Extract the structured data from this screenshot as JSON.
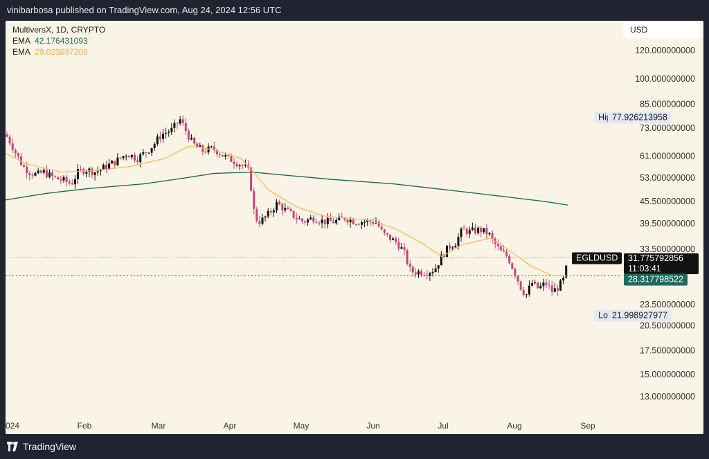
{
  "header": {
    "publisher_line": "vinibarbosa published on TradingView.com, Aug 24, 2024 12:56 UTC"
  },
  "legend": {
    "symbol_line": "MultiversX, 1D, CRYPTO",
    "ema1_label": "EMA",
    "ema1_value": "42.176431093",
    "ema2_label": "EMA",
    "ema2_value": "29.023037209"
  },
  "currency": "USD",
  "price_labels": {
    "high_label": "High",
    "high_value": "77.926213958",
    "low_label": "Low",
    "low_value": "21.998927977",
    "ticker": "EGLDUSD",
    "last_price": "31.775792856",
    "countdown": "11:03:41",
    "ema_price": "28.317798522"
  },
  "footer": {
    "brand": "TradingView"
  },
  "colors": {
    "up": "#111111",
    "down": "#c8447a",
    "ema_long": "#1e6b5b",
    "ema_short": "#f2bd5c",
    "background": "#faf4e6"
  },
  "chart_data": {
    "type": "candlestick",
    "title": "MultiversX, 1D, CRYPTO",
    "symbol": "EGLDUSD",
    "y_scale": "log",
    "y_ticks": [
      "120.000000000",
      "100.000000000",
      "85.000000000",
      "73.000000000",
      "61.000000000",
      "53.000000000",
      "45.500000000",
      "39.500000000",
      "33.500000000",
      "23.500000000",
      "20.500000000",
      "17.500000000",
      "15.000000000",
      "13.000000000"
    ],
    "x_ticks": [
      "024",
      "Feb",
      "Mar",
      "Apr",
      "May",
      "Jun",
      "Jul",
      "Aug",
      "Sep"
    ],
    "ohlc_approx": [
      {
        "month": "Jan",
        "close_range": [
          52,
          70
        ]
      },
      {
        "month": "Feb",
        "close_range": [
          50,
          60
        ]
      },
      {
        "month": "Mar",
        "close_range": [
          56,
          77.9
        ]
      },
      {
        "month": "Apr",
        "close_range": [
          35,
          63
        ]
      },
      {
        "month": "May",
        "close_range": [
          38,
          44
        ]
      },
      {
        "month": "Jun",
        "close_range": [
          28,
          41
        ]
      },
      {
        "month": "Jul",
        "close_range": [
          29,
          39
        ]
      },
      {
        "month": "Aug",
        "close_range": [
          22,
          32
        ]
      }
    ],
    "series": [
      {
        "name": "EMA",
        "last": 42.176431093
      },
      {
        "name": "EMA",
        "last": 29.023037209
      }
    ],
    "last_price": 31.775792856,
    "high": 77.926213958,
    "low": 21.998927977
  }
}
